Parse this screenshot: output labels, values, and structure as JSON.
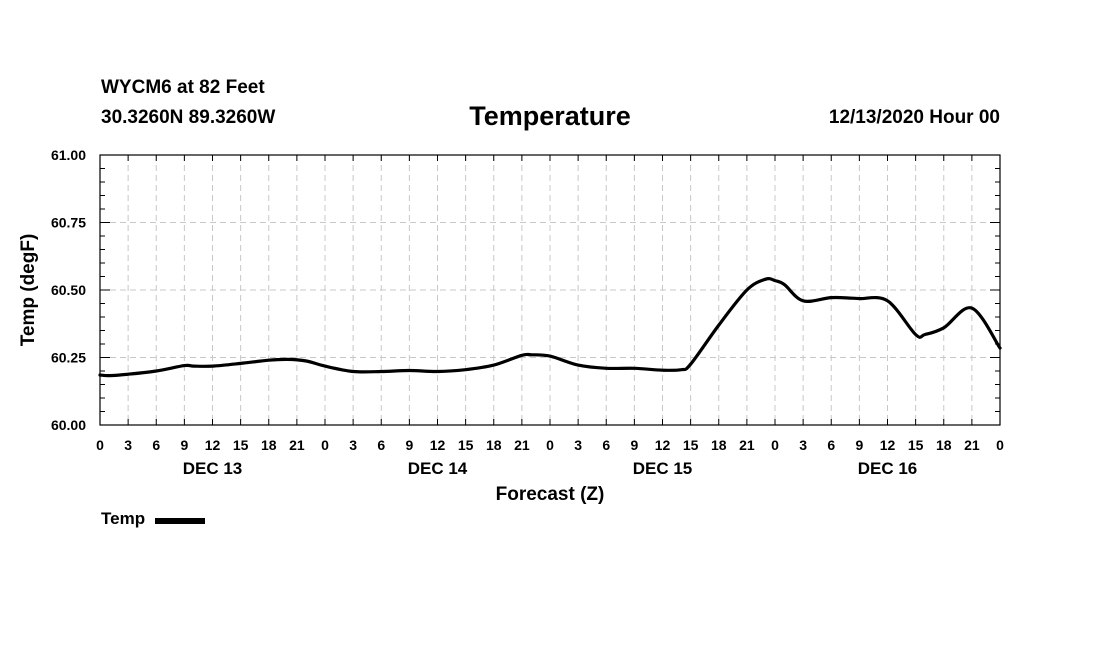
{
  "header": {
    "station": "WYCM6 at 82 Feet",
    "coords": "30.3260N 89.3260W",
    "run_time": "12/13/2020 Hour 00"
  },
  "chart_data": {
    "type": "line",
    "title": "Temperature",
    "xlabel": "Forecast (Z)",
    "ylabel": "Temp (degF)",
    "ylim": [
      60.0,
      61.0
    ],
    "y_ticks": [
      "60.00",
      "60.25",
      "60.50",
      "60.75",
      "61.00"
    ],
    "x_range_hours": [
      0,
      96
    ],
    "x_tick_labels": [
      "0",
      "3",
      "6",
      "9",
      "12",
      "15",
      "18",
      "21",
      "0",
      "3",
      "6",
      "9",
      "12",
      "15",
      "18",
      "21",
      "0",
      "3",
      "6",
      "9",
      "12",
      "15",
      "18",
      "21",
      "0",
      "3",
      "6",
      "9",
      "12",
      "15",
      "18",
      "21",
      "0"
    ],
    "day_labels": [
      "DEC 13",
      "DEC 14",
      "DEC 15",
      "DEC 16"
    ],
    "grid": true,
    "legend": "bottom-left",
    "series": [
      {
        "name": "Temp",
        "x": [
          0,
          1,
          3,
          6,
          9,
          10,
          12,
          15,
          18,
          20,
          22,
          24,
          27,
          30,
          33,
          36,
          39,
          42,
          45,
          46,
          48,
          51,
          54,
          57,
          60,
          62,
          63,
          66,
          69,
          71,
          72,
          73,
          75,
          78,
          80,
          81,
          84,
          87,
          88,
          90,
          93,
          96
        ],
        "values": [
          60.185,
          60.183,
          60.188,
          60.2,
          60.22,
          60.218,
          60.218,
          60.228,
          60.24,
          60.243,
          60.237,
          60.218,
          60.198,
          60.198,
          60.202,
          60.198,
          60.205,
          60.222,
          60.258,
          60.26,
          60.255,
          60.222,
          60.21,
          60.21,
          60.203,
          60.205,
          60.225,
          60.37,
          60.5,
          60.54,
          60.535,
          60.52,
          60.46,
          60.472,
          60.47,
          60.468,
          60.46,
          60.335,
          60.335,
          60.36,
          60.433,
          60.285
        ]
      }
    ]
  }
}
